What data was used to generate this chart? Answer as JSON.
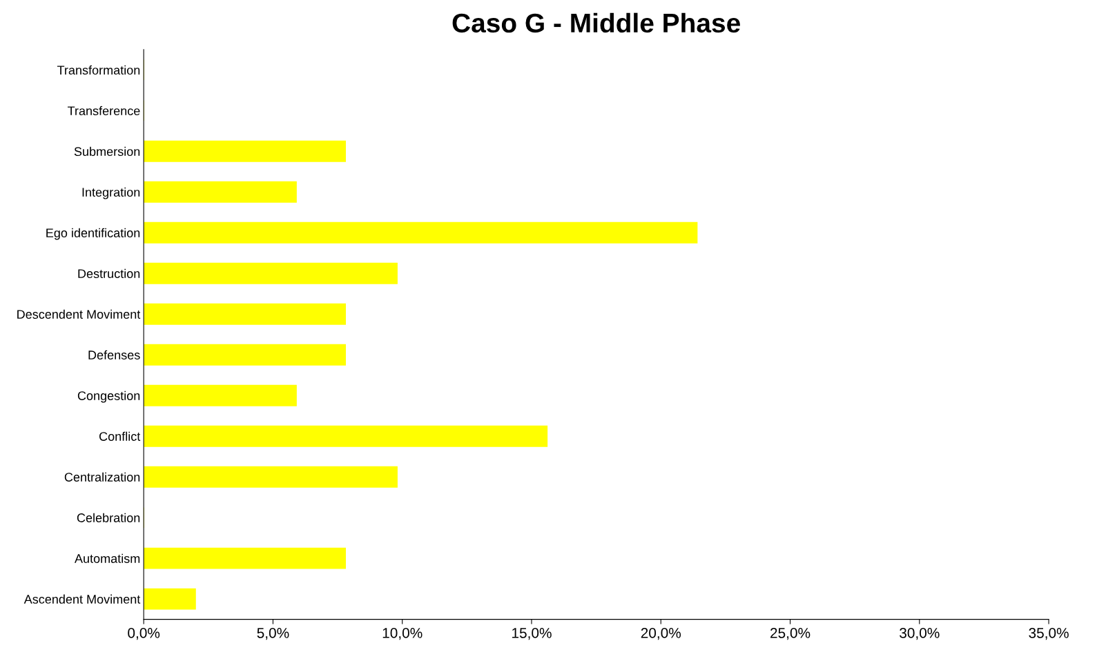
{
  "chart_data": {
    "type": "bar",
    "orientation": "horizontal",
    "title": "Caso G - Middle Phase",
    "categories": [
      "Transformation",
      "Transference",
      "Submersion",
      "Integration",
      "Ego identification",
      "Destruction",
      "Descendent Moviment",
      "Defenses",
      "Congestion",
      "Conflict",
      "Centralization",
      "Celebration",
      "Automatism",
      "Ascendent Moviment"
    ],
    "values": [
      0,
      0,
      7.8,
      5.9,
      21.4,
      9.8,
      7.8,
      7.8,
      5.9,
      15.6,
      9.8,
      0,
      7.8,
      2.0
    ],
    "color": "#ffff00",
    "xlim": [
      0,
      35
    ],
    "xticks": [
      {
        "value": 0,
        "label": "0,0%"
      },
      {
        "value": 5,
        "label": "5,0%"
      },
      {
        "value": 10,
        "label": "10,0%"
      },
      {
        "value": 15,
        "label": "15,0%"
      },
      {
        "value": 20,
        "label": "20,0%"
      },
      {
        "value": 25,
        "label": "25,0%"
      },
      {
        "value": 30,
        "label": "30,0%"
      },
      {
        "value": 35,
        "label": "35,0%"
      }
    ],
    "grid": false
  }
}
